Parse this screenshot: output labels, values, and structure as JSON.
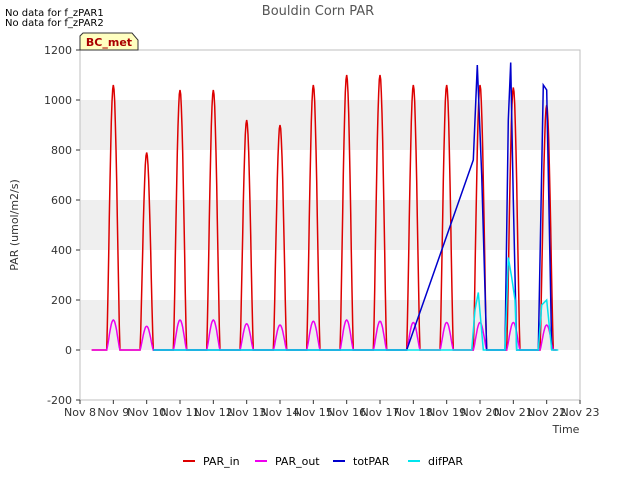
{
  "notes": [
    "No data for f_zPAR1",
    "No data for f_zPAR2"
  ],
  "badge": "BC_met",
  "chart_data": {
    "type": "line",
    "title": "Bouldin Corn PAR",
    "xlabel": "Time",
    "ylabel": "PAR (umol/m2/s)",
    "xlim": [
      8,
      23
    ],
    "ylim": [
      -200,
      1200
    ],
    "yticks": [
      -200,
      0,
      200,
      400,
      600,
      800,
      1000,
      1200
    ],
    "xticks": [
      {
        "v": 8,
        "label": "Nov 8"
      },
      {
        "v": 9,
        "label": "Nov 9"
      },
      {
        "v": 10,
        "label": "Nov 10"
      },
      {
        "v": 11,
        "label": "Nov 11"
      },
      {
        "v": 12,
        "label": "Nov 12"
      },
      {
        "v": 13,
        "label": "Nov 13"
      },
      {
        "v": 14,
        "label": "Nov 14"
      },
      {
        "v": 15,
        "label": "Nov 15"
      },
      {
        "v": 16,
        "label": "Nov 16"
      },
      {
        "v": 17,
        "label": "Nov 17"
      },
      {
        "v": 18,
        "label": "Nov 18"
      },
      {
        "v": 19,
        "label": "Nov 19"
      },
      {
        "v": 20,
        "label": "Nov 20"
      },
      {
        "v": 21,
        "label": "Nov 21"
      },
      {
        "v": 22,
        "label": "Nov 22"
      },
      {
        "v": 23,
        "label": "Nov 23"
      }
    ],
    "grid": false,
    "bands": true,
    "legend_position": "bottom-center",
    "series": [
      {
        "name": "PAR_in",
        "color": "#dd0000",
        "days": [
          {
            "start": 8.8,
            "peak": 1060
          },
          {
            "start": 9.8,
            "peak": 790
          },
          {
            "start": 10.8,
            "peak": 1040
          },
          {
            "start": 11.8,
            "peak": 1040
          },
          {
            "start": 12.8,
            "peak": 920
          },
          {
            "start": 13.8,
            "peak": 900
          },
          {
            "start": 14.8,
            "peak": 1060
          },
          {
            "start": 15.8,
            "peak": 1100
          },
          {
            "start": 16.8,
            "peak": 1100
          },
          {
            "start": 17.8,
            "peak": 1060
          },
          {
            "start": 18.8,
            "peak": 1060
          },
          {
            "start": 19.8,
            "peak": 1060
          },
          {
            "start": 20.8,
            "peak": 1050
          },
          {
            "start": 21.8,
            "peak": 980
          }
        ]
      },
      {
        "name": "PAR_out",
        "color": "#ee00ee",
        "days": [
          {
            "start": 8.8,
            "peak": 120
          },
          {
            "start": 9.8,
            "peak": 95
          },
          {
            "start": 10.8,
            "peak": 120
          },
          {
            "start": 11.8,
            "peak": 120
          },
          {
            "start": 12.8,
            "peak": 105
          },
          {
            "start": 13.8,
            "peak": 100
          },
          {
            "start": 14.8,
            "peak": 115
          },
          {
            "start": 15.8,
            "peak": 120
          },
          {
            "start": 16.8,
            "peak": 115
          },
          {
            "start": 17.8,
            "peak": 110
          },
          {
            "start": 18.8,
            "peak": 110
          },
          {
            "start": 19.8,
            "peak": 110
          },
          {
            "start": 20.8,
            "peak": 110
          },
          {
            "start": 21.8,
            "peak": 100
          }
        ]
      },
      {
        "name": "totPAR",
        "color": "#0000cc",
        "points": [
          [
            10.2,
            0
          ],
          [
            17.8,
            0
          ],
          [
            19.8,
            760
          ],
          [
            19.92,
            1140
          ],
          [
            20.05,
            700
          ],
          [
            20.2,
            0
          ],
          [
            20.75,
            0
          ],
          [
            20.85,
            920
          ],
          [
            20.92,
            1150
          ],
          [
            21.0,
            600
          ],
          [
            21.1,
            0
          ],
          [
            21.75,
            0
          ],
          [
            21.9,
            1060
          ],
          [
            22.0,
            1040
          ],
          [
            22.15,
            0
          ]
        ]
      },
      {
        "name": "difPAR",
        "color": "#00e5ee",
        "points": [
          [
            10.2,
            0
          ],
          [
            19.75,
            0
          ],
          [
            19.85,
            160
          ],
          [
            19.95,
            230
          ],
          [
            20.1,
            0
          ],
          [
            20.75,
            0
          ],
          [
            20.85,
            370
          ],
          [
            20.95,
            290
          ],
          [
            21.05,
            200
          ],
          [
            21.1,
            0
          ],
          [
            21.75,
            0
          ],
          [
            21.85,
            180
          ],
          [
            22.0,
            200
          ],
          [
            22.15,
            0
          ],
          [
            22.35,
            0
          ]
        ]
      }
    ]
  }
}
